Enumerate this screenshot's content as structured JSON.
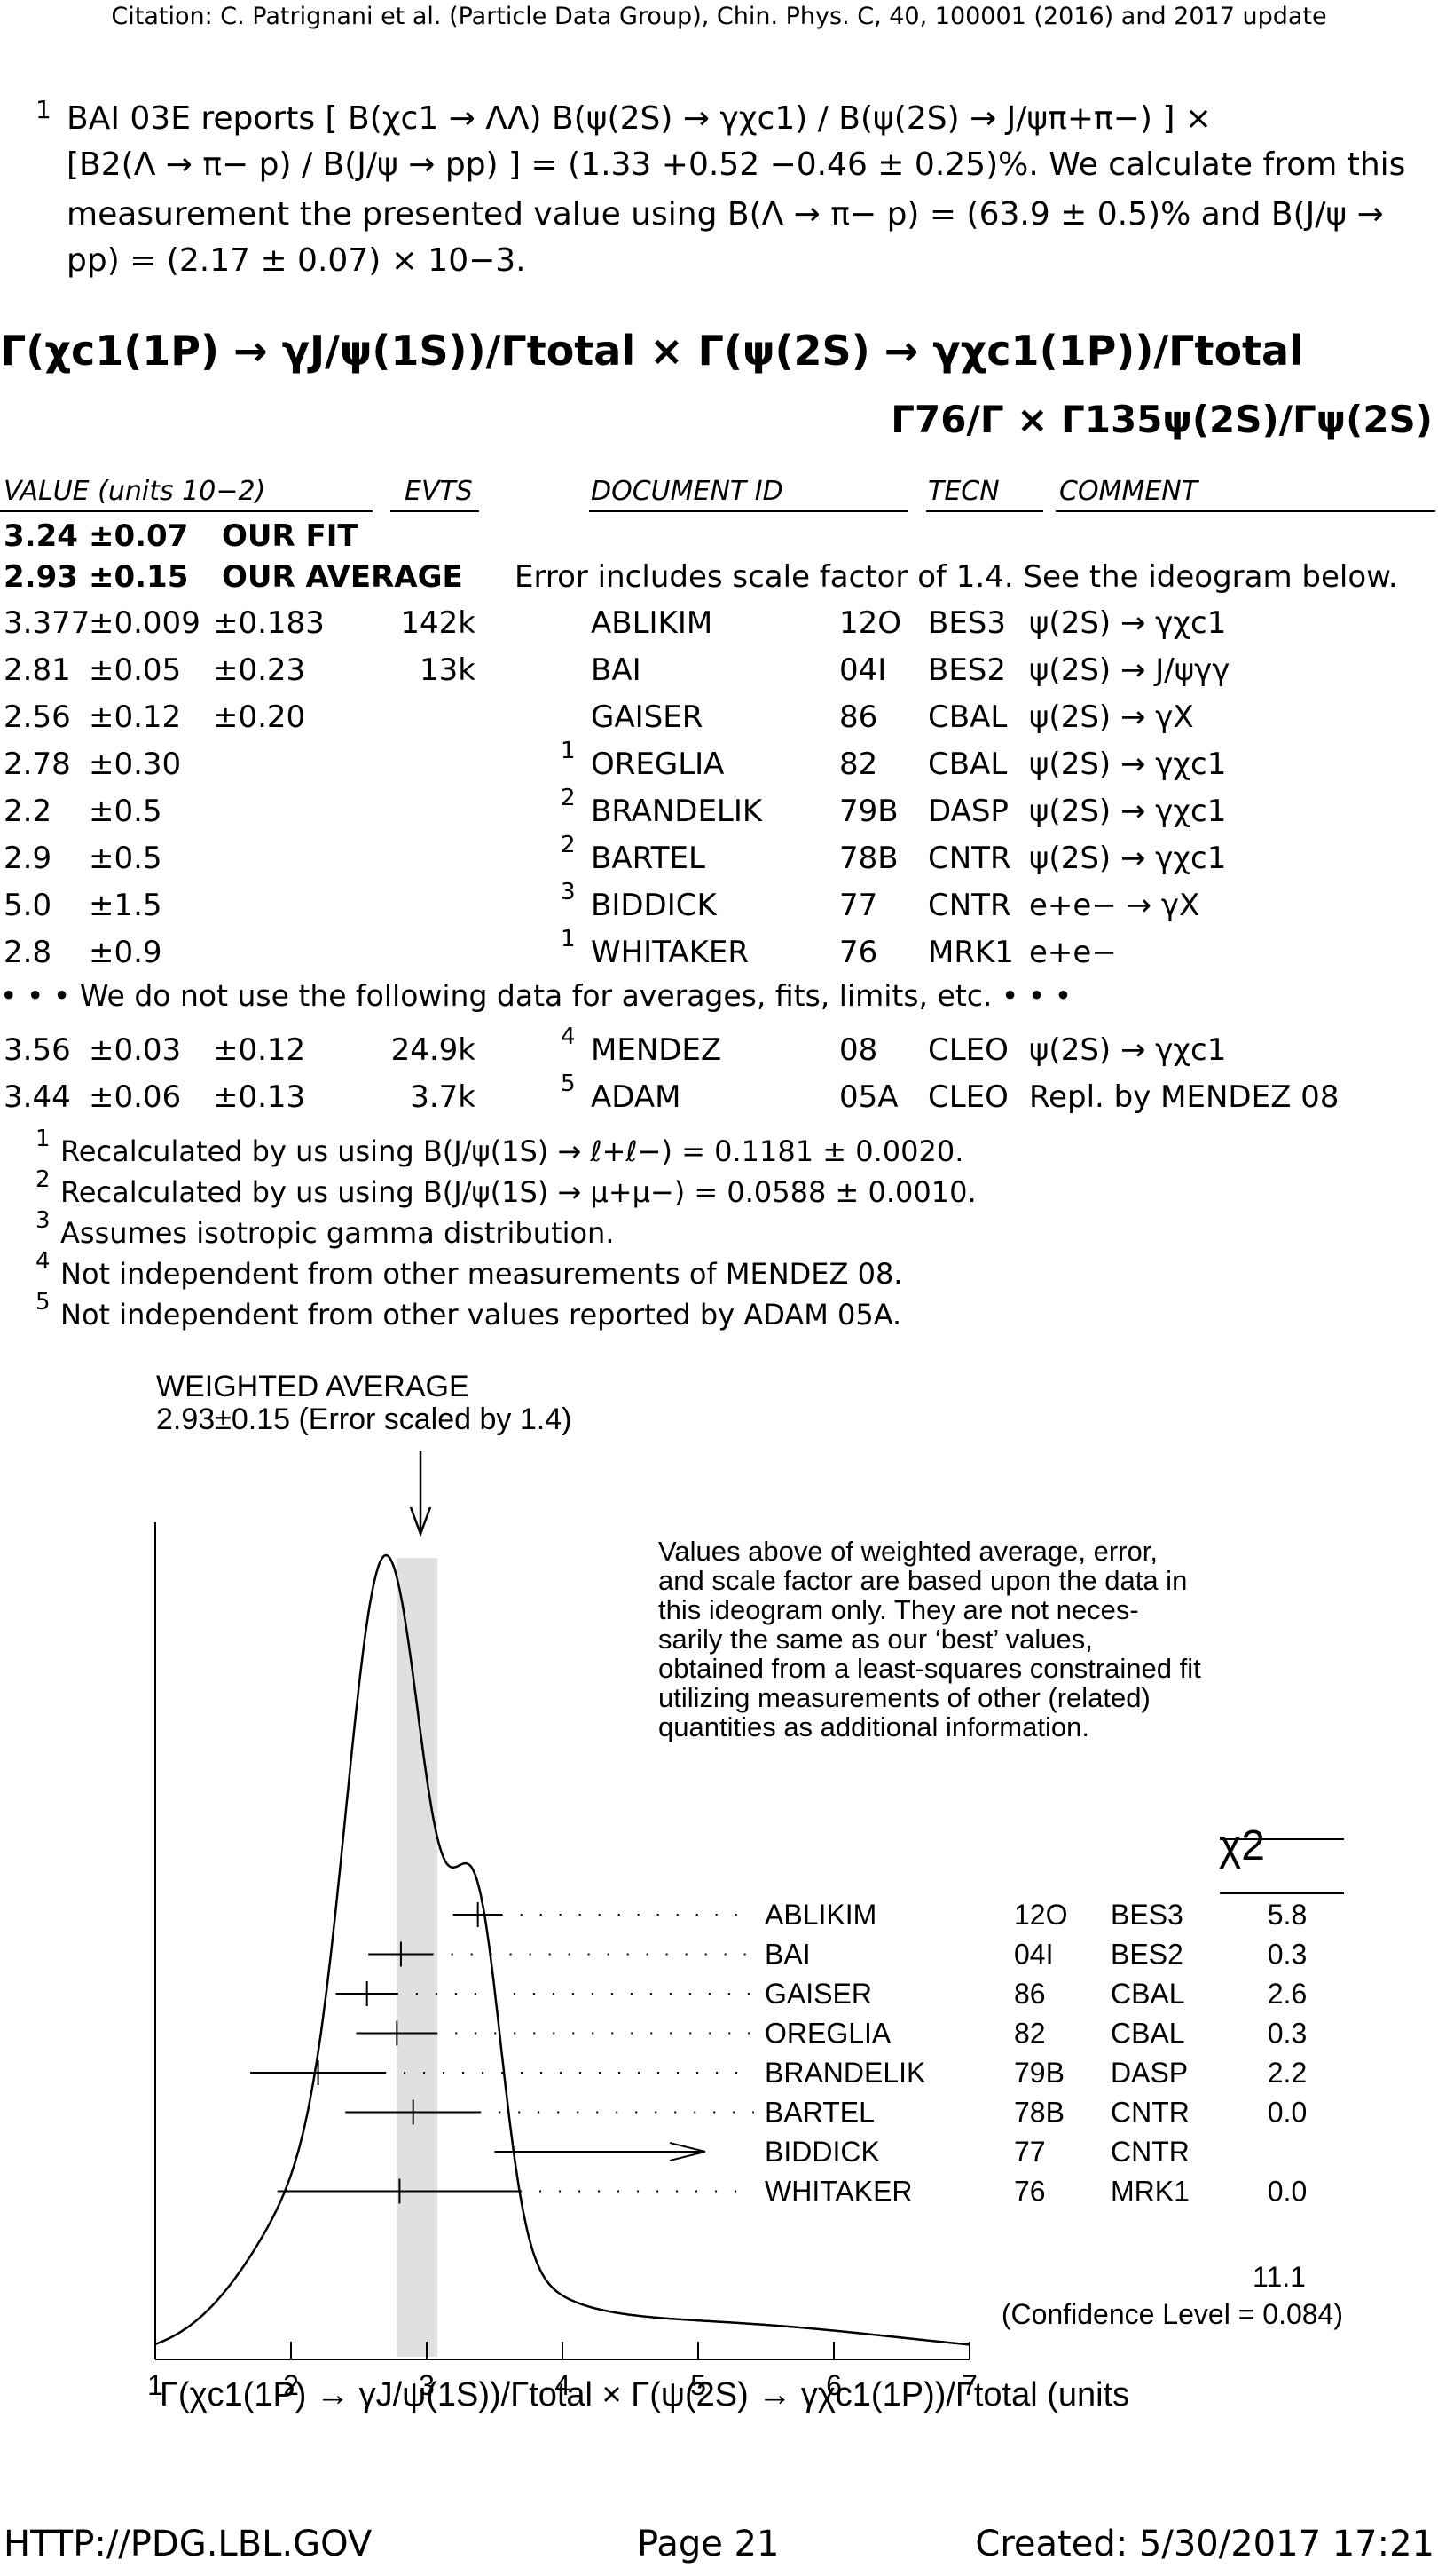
{
  "citation": "Citation: C. Patrignani et al. (Particle Data Group), Chin. Phys. C, 40, 100001 (2016) and 2017 update",
  "top_footnote": {
    "number": "1",
    "lines": [
      "BAI 03E reports [ B(χc1 → ΛΛ) B(ψ(2S) → γχc1) / B(ψ(2S) → J/ψπ+π−) ] ×",
      "[B2(Λ → π− p) / B(J/ψ → pp) ] = (1.33 +0.52 −0.46 ± 0.25)%. We calculate from this",
      "measurement the presented value using B(Λ → π− p) = (63.9 ± 0.5)% and B(J/ψ →",
      "pp) = (2.17 ± 0.07) × 10−3."
    ]
  },
  "heading": "Γ(χc1(1P) → γJ/ψ(1S))/Γtotal × Γ(ψ(2S) → γχc1(1P))/Γtotal",
  "subheading": "Γ76/Γ × Γ135ψ(2S)/Γψ(2S)",
  "table": {
    "headers": {
      "value": "VALUE (units 10−2)",
      "evts": "EVTS",
      "doc": "DOCUMENT ID",
      "tecn": "TECN",
      "comment": "COMMENT"
    },
    "fit": {
      "value": "3.24",
      "err": "±0.07",
      "label": "OUR FIT"
    },
    "avg": {
      "value": "2.93",
      "err": "±0.15",
      "label": "OUR AVERAGE",
      "note": "Error includes scale factor of 1.4. See the ideogram below."
    },
    "rows": [
      {
        "value": "3.377",
        "err1": "±0.009",
        "err2": "±0.183",
        "evts": "142k",
        "fn": "",
        "doc": "ABLIKIM",
        "yr": "12O",
        "tecn": "BES3",
        "comment": "ψ(2S) → γχc1"
      },
      {
        "value": "2.81",
        "err1": "±0.05",
        "err2": "±0.23",
        "evts": "13k",
        "fn": "",
        "doc": "BAI",
        "yr": "04I",
        "tecn": "BES2",
        "comment": "ψ(2S) → J/ψγγ"
      },
      {
        "value": "2.56",
        "err1": "±0.12",
        "err2": "±0.20",
        "evts": "",
        "fn": "",
        "doc": "GAISER",
        "yr": "86",
        "tecn": "CBAL",
        "comment": "ψ(2S) → γX"
      },
      {
        "value": "2.78",
        "err1": "±0.30",
        "err2": "",
        "evts": "",
        "fn": "1",
        "doc": "OREGLIA",
        "yr": "82",
        "tecn": "CBAL",
        "comment": "ψ(2S) → γχc1"
      },
      {
        "value": "2.2",
        "err1": "±0.5",
        "err2": "",
        "evts": "",
        "fn": "2",
        "doc": "BRANDELIK",
        "yr": "79B",
        "tecn": "DASP",
        "comment": "ψ(2S) → γχc1"
      },
      {
        "value": "2.9",
        "err1": "±0.5",
        "err2": "",
        "evts": "",
        "fn": "2",
        "doc": "BARTEL",
        "yr": "78B",
        "tecn": "CNTR",
        "comment": "ψ(2S) → γχc1"
      },
      {
        "value": "5.0",
        "err1": "±1.5",
        "err2": "",
        "evts": "",
        "fn": "3",
        "doc": "BIDDICK",
        "yr": "77",
        "tecn": "CNTR",
        "comment": "e+e− → γX"
      },
      {
        "value": "2.8",
        "err1": "±0.9",
        "err2": "",
        "evts": "",
        "fn": "1",
        "doc": "WHITAKER",
        "yr": "76",
        "tecn": "MRK1",
        "comment": "e+e−"
      }
    ],
    "notused": "• • • We do not use the following data for averages, fits, limits, etc. • • •",
    "rows2": [
      {
        "value": "3.56",
        "err1": "±0.03",
        "err2": "±0.12",
        "evts": "24.9k",
        "fn": "4",
        "doc": "MENDEZ",
        "yr": "08",
        "tecn": "CLEO",
        "comment": "ψ(2S) → γχc1"
      },
      {
        "value": "3.44",
        "err1": "±0.06",
        "err2": "±0.13",
        "evts": "3.7k",
        "fn": "5",
        "doc": "ADAM",
        "yr": "05A",
        "tecn": "CLEO",
        "comment": "Repl. by MENDEZ 08"
      }
    ]
  },
  "footnotes": [
    {
      "n": "1",
      "text": "Recalculated by us using B(J/ψ(1S) → ℓ+ℓ−) = 0.1181 ± 0.0020."
    },
    {
      "n": "2",
      "text": "Recalculated by us using B(J/ψ(1S) → μ+μ−) = 0.0588 ± 0.0010."
    },
    {
      "n": "3",
      "text": "Assumes isotropic gamma distribution."
    },
    {
      "n": "4",
      "text": "Not independent from other measurements of MENDEZ 08."
    },
    {
      "n": "5",
      "text": "Not independent from other values reported by ADAM 05A."
    }
  ],
  "ideogram": {
    "wa_title": "WEIGHTED AVERAGE",
    "wa_value": "2.93±0.15 (Error scaled by 1.4)",
    "note_lines": [
      "Values above of weighted average, error,",
      "and scale factor are based upon the data in",
      "this ideogram only.  They are not neces-",
      "sarily the same as our ‘best’ values,",
      "obtained from a least-squares constrained fit",
      "utilizing measurements of other (related)",
      "quantities as additional information."
    ],
    "chi2_header": "χ2",
    "entries": [
      {
        "name": "ABLIKIM",
        "yr": "12O",
        "tecn": "BES3",
        "chi2": "5.8"
      },
      {
        "name": "BAI",
        "yr": "04I",
        "tecn": "BES2",
        "chi2": "0.3"
      },
      {
        "name": "GAISER",
        "yr": "86",
        "tecn": "CBAL",
        "chi2": "2.6"
      },
      {
        "name": "OREGLIA",
        "yr": "82",
        "tecn": "CBAL",
        "chi2": "0.3"
      },
      {
        "name": "BRANDELIK",
        "yr": "79B",
        "tecn": "DASP",
        "chi2": "2.2"
      },
      {
        "name": "BARTEL",
        "yr": "78B",
        "tecn": "CNTR",
        "chi2": "0.0"
      },
      {
        "name": "BIDDICK",
        "yr": "77",
        "tecn": "CNTR",
        "chi2": ""
      },
      {
        "name": "WHITAKER",
        "yr": "76",
        "tecn": "MRK1",
        "chi2": "0.0"
      }
    ],
    "chi2_total": "11.1",
    "cl": "(Confidence Level = 0.084)",
    "xticks": [
      "1",
      "2",
      "3",
      "4",
      "5",
      "6",
      "7"
    ],
    "xlabel": "Γ(χc1(1P) → γJ/ψ(1S))/Γtotal × Γ(ψ(2S) → γχc1(1P))/Γtotal (units"
  },
  "chart_data": {
    "type": "scatter",
    "title": "WEIGHTED AVERAGE 2.93±0.15 (Error scaled by 1.4)",
    "xlim": [
      1,
      7
    ],
    "weighted_average": 2.93,
    "weighted_error": 0.15,
    "points": [
      {
        "name": "ABLIKIM",
        "x": 3.377,
        "err": 0.183
      },
      {
        "name": "BAI",
        "x": 2.81,
        "err": 0.24
      },
      {
        "name": "GAISER",
        "x": 2.56,
        "err": 0.23
      },
      {
        "name": "OREGLIA",
        "x": 2.78,
        "err": 0.3
      },
      {
        "name": "BRANDELIK",
        "x": 2.2,
        "err": 0.5
      },
      {
        "name": "BARTEL",
        "x": 2.9,
        "err": 0.5
      },
      {
        "name": "BIDDICK",
        "x": 5.0,
        "err": 1.5
      },
      {
        "name": "WHITAKER",
        "x": 2.8,
        "err": 0.9
      }
    ]
  },
  "footer": {
    "left": "HTTP://PDG.LBL.GOV",
    "center": "Page 21",
    "right": "Created: 5/30/2017 17:21"
  }
}
